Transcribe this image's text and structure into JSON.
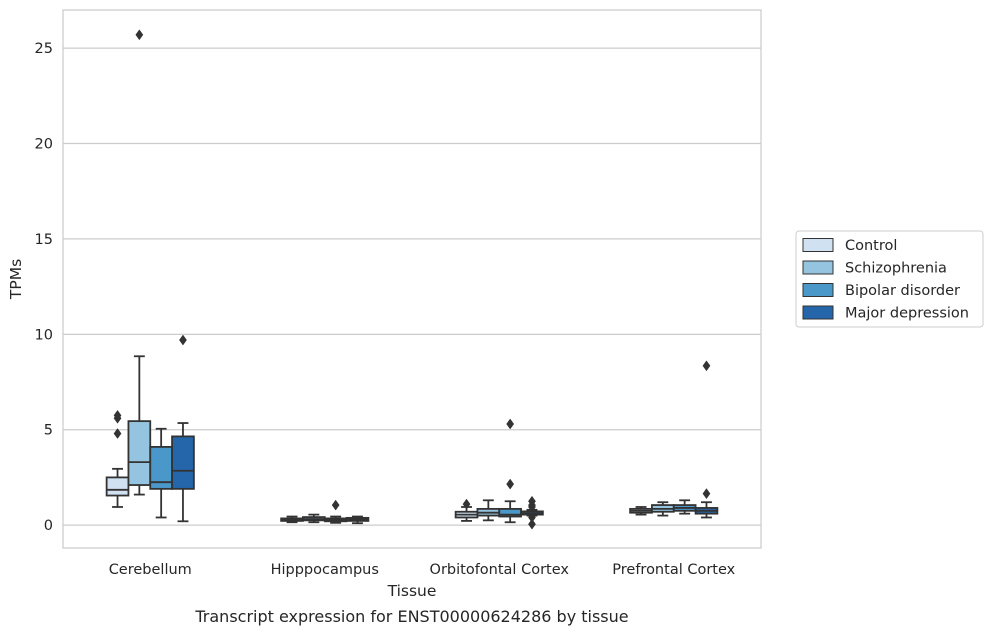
{
  "caption": "Transcript expression for ENST00000624286 by tissue",
  "chart_data": {
    "type": "box",
    "xlabel": "Tissue",
    "ylabel": "TPMs",
    "ylim": [
      -1.2,
      27
    ],
    "yticks": [
      0,
      5,
      10,
      15,
      20,
      25
    ],
    "grid": "horizontal",
    "legend_position": "right",
    "categories": [
      "Cerebellum",
      "Hipppocampus",
      "Orbitofontal Cortex",
      "Prefrontal Cortex"
    ],
    "series": [
      {
        "name": "Control",
        "color": "#d0e1f2",
        "boxes": [
          {
            "whislo": 0.95,
            "q1": 1.55,
            "med": 1.85,
            "q3": 2.5,
            "whishi": 2.95,
            "fliers": [
              4.8,
              5.6,
              5.75
            ]
          },
          {
            "whislo": 0.15,
            "q1": 0.22,
            "med": 0.27,
            "q3": 0.35,
            "whishi": 0.45,
            "fliers": []
          },
          {
            "whislo": 0.22,
            "q1": 0.4,
            "med": 0.55,
            "q3": 0.7,
            "whishi": 0.95,
            "fliers": [
              1.1
            ]
          },
          {
            "whislo": 0.55,
            "q1": 0.65,
            "med": 0.75,
            "q3": 0.85,
            "whishi": 0.95,
            "fliers": []
          }
        ]
      },
      {
        "name": "Schizophrenia",
        "color": "#94c4df",
        "boxes": [
          {
            "whislo": 1.6,
            "q1": 2.1,
            "med": 3.3,
            "q3": 5.45,
            "whishi": 8.85,
            "fliers": [
              25.7
            ]
          },
          {
            "whislo": 0.15,
            "q1": 0.25,
            "med": 0.32,
            "q3": 0.42,
            "whishi": 0.55,
            "fliers": []
          },
          {
            "whislo": 0.25,
            "q1": 0.5,
            "med": 0.65,
            "q3": 0.85,
            "whishi": 1.3,
            "fliers": []
          },
          {
            "whislo": 0.5,
            "q1": 0.7,
            "med": 0.85,
            "q3": 1.05,
            "whishi": 1.2,
            "fliers": []
          }
        ]
      },
      {
        "name": "Bipolar disorder",
        "color": "#4a98c9",
        "boxes": [
          {
            "whislo": 0.4,
            "q1": 1.9,
            "med": 2.25,
            "q3": 4.1,
            "whishi": 5.05,
            "fliers": []
          },
          {
            "whislo": 0.12,
            "q1": 0.2,
            "med": 0.28,
            "q3": 0.35,
            "whishi": 0.45,
            "fliers": [
              1.05
            ]
          },
          {
            "whislo": 0.15,
            "q1": 0.45,
            "med": 0.55,
            "q3": 0.85,
            "whishi": 1.25,
            "fliers": [
              2.15,
              5.3
            ]
          },
          {
            "whislo": 0.6,
            "q1": 0.75,
            "med": 0.9,
            "q3": 1.05,
            "whishi": 1.3,
            "fliers": []
          }
        ]
      },
      {
        "name": "Major depression",
        "color": "#2466a9",
        "boxes": [
          {
            "whislo": 0.2,
            "q1": 1.9,
            "med": 2.85,
            "q3": 4.65,
            "whishi": 5.35,
            "fliers": [
              9.7
            ]
          },
          {
            "whislo": 0.1,
            "q1": 0.22,
            "med": 0.3,
            "q3": 0.38,
            "whishi": 0.45,
            "fliers": []
          },
          {
            "whislo": 0.5,
            "q1": 0.55,
            "med": 0.62,
            "q3": 0.72,
            "whishi": 0.8,
            "fliers": [
              0.05,
              0.4,
              0.95,
              1.05,
              1.25
            ]
          },
          {
            "whislo": 0.4,
            "q1": 0.6,
            "med": 0.75,
            "q3": 0.9,
            "whishi": 1.2,
            "fliers": [
              1.65,
              8.35
            ]
          }
        ]
      }
    ]
  }
}
